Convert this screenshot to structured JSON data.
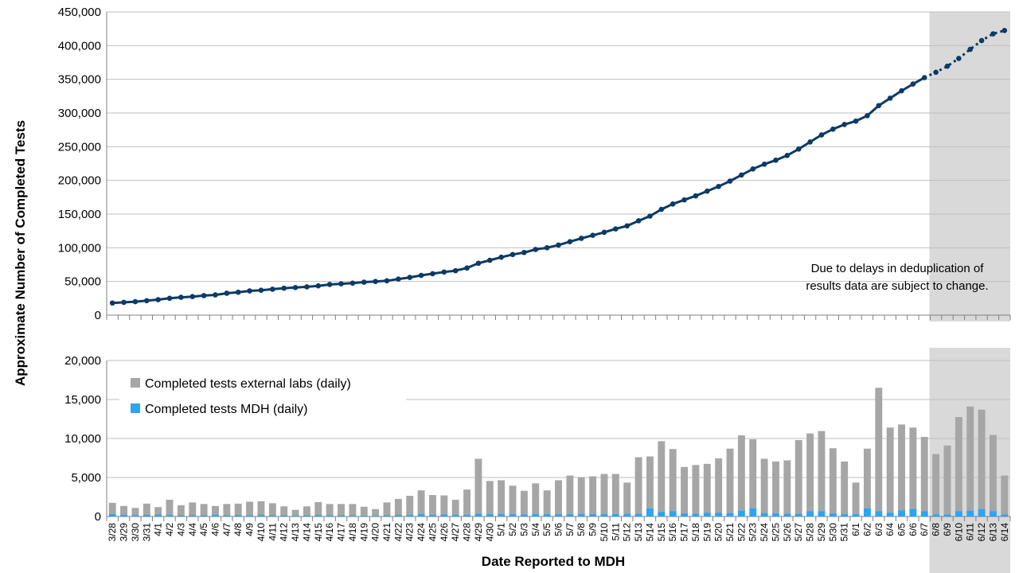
{
  "chart_data": [
    {
      "type": "line",
      "ylabel": "Approximate Number of Completed Tests",
      "ylim": [
        0,
        450000
      ],
      "yticks": [
        "0",
        "50,000",
        "100,000",
        "150,000",
        "200,000",
        "250,000",
        "300,000",
        "350,000",
        "400,000",
        "450,000"
      ],
      "grid": true,
      "annotation": [
        "Due to delays in deduplication of",
        "results data are subject to change."
      ],
      "shaded_from": "6/8",
      "dotted_from": "6/7",
      "line_color": "#0d3a66",
      "x": [
        "3/28",
        "3/29",
        "3/30",
        "3/31",
        "4/1",
        "4/2",
        "4/3",
        "4/4",
        "4/5",
        "4/6",
        "4/7",
        "4/8",
        "4/9",
        "4/10",
        "4/11",
        "4/12",
        "4/13",
        "4/14",
        "4/15",
        "4/16",
        "4/17",
        "4/18",
        "4/19",
        "4/20",
        "4/21",
        "4/22",
        "4/23",
        "4/24",
        "4/25",
        "4/26",
        "4/27",
        "4/28",
        "4/29",
        "4/30",
        "5/1",
        "5/2",
        "5/3",
        "5/4",
        "5/5",
        "5/6",
        "5/7",
        "5/8",
        "5/9",
        "5/10",
        "5/11",
        "5/12",
        "5/13",
        "5/14",
        "5/15",
        "5/16",
        "5/17",
        "5/18",
        "5/19",
        "5/20",
        "5/21",
        "5/22",
        "5/23",
        "5/24",
        "5/25",
        "5/26",
        "5/27",
        "5/28",
        "5/29",
        "5/30",
        "5/31",
        "6/1",
        "6/2",
        "6/3",
        "6/4",
        "6/5",
        "6/6",
        "6/7",
        "6/8",
        "6/9",
        "6/10",
        "6/11",
        "6/12",
        "6/13",
        "6/14"
      ],
      "values": [
        18000,
        19000,
        20000,
        21500,
        23000,
        25000,
        26500,
        27500,
        29000,
        30000,
        32500,
        34000,
        36000,
        37000,
        38500,
        40000,
        41000,
        42000,
        43500,
        45500,
        46500,
        47500,
        49000,
        50000,
        51000,
        53500,
        56000,
        59000,
        61500,
        64000,
        66000,
        70000,
        77000,
        81500,
        86000,
        90000,
        93000,
        97500,
        100000,
        104000,
        109000,
        114000,
        118500,
        123000,
        128000,
        132500,
        140000,
        147000,
        157000,
        165000,
        171000,
        177000,
        184000,
        191000,
        199000,
        208000,
        217000,
        224000,
        230000,
        237000,
        246500,
        257000,
        267500,
        276000,
        283000,
        288000,
        296000,
        311000,
        322000,
        333000,
        343000,
        352500,
        360500,
        369500,
        381000,
        394500,
        407500,
        417500,
        422500
      ]
    },
    {
      "type": "bar",
      "xlabel": "Date Reported to MDH",
      "ylim": [
        0,
        20000
      ],
      "yticks": [
        "0",
        "5,000",
        "10,000",
        "15,000",
        "20,000"
      ],
      "grid": true,
      "legend_position": "top-left",
      "shaded_from": "6/8",
      "categories": [
        "3/28",
        "3/29",
        "3/30",
        "3/31",
        "4/1",
        "4/2",
        "4/3",
        "4/4",
        "4/5",
        "4/6",
        "4/7",
        "4/8",
        "4/9",
        "4/10",
        "4/11",
        "4/12",
        "4/13",
        "4/14",
        "4/15",
        "4/16",
        "4/17",
        "4/18",
        "4/19",
        "4/20",
        "4/21",
        "4/22",
        "4/23",
        "4/24",
        "4/25",
        "4/26",
        "4/27",
        "4/28",
        "4/29",
        "4/30",
        "5/1",
        "5/2",
        "5/3",
        "5/4",
        "5/5",
        "5/6",
        "5/7",
        "5/8",
        "5/9",
        "5/10",
        "5/11",
        "5/12",
        "5/13",
        "5/14",
        "5/15",
        "5/16",
        "5/17",
        "5/18",
        "5/19",
        "5/20",
        "5/21",
        "5/22",
        "5/23",
        "5/24",
        "5/25",
        "5/26",
        "5/27",
        "5/28",
        "5/29",
        "5/30",
        "5/31",
        "6/1",
        "6/2",
        "6/3",
        "6/4",
        "6/5",
        "6/6",
        "6/7",
        "6/8",
        "6/9",
        "6/10",
        "6/11",
        "6/12",
        "6/13",
        "6/14"
      ],
      "series": [
        {
          "name": "Completed tests external labs (daily)",
          "color": "#a6a6a6",
          "values": [
            1450,
            1150,
            950,
            1450,
            950,
            1950,
            1300,
            1650,
            1450,
            1150,
            1450,
            1450,
            1750,
            1750,
            1550,
            1150,
            750,
            1150,
            1650,
            1450,
            1450,
            1450,
            1150,
            850,
            1650,
            2050,
            2450,
            3050,
            2550,
            2450,
            1950,
            3250,
            7050,
            4250,
            4350,
            3650,
            3050,
            3950,
            3050,
            4350,
            4950,
            4750,
            4850,
            5150,
            5150,
            4000,
            7250,
            6650,
            9050,
            7950,
            5950,
            6250,
            6250,
            6950,
            8250,
            9650,
            8850,
            6950,
            6650,
            6850,
            9450,
            9950,
            10250,
            8350,
            6750,
            4050,
            7650,
            15800,
            10900,
            11000,
            10400,
            9500,
            7750,
            8850,
            12050,
            13350,
            12750,
            9750,
            5000
          ]
        },
        {
          "name": "Completed tests MDH (daily)",
          "color": "#2ea3f2",
          "values": [
            300,
            200,
            150,
            200,
            250,
            200,
            150,
            150,
            150,
            200,
            150,
            200,
            150,
            200,
            150,
            150,
            100,
            150,
            200,
            150,
            150,
            150,
            100,
            100,
            150,
            200,
            200,
            300,
            200,
            250,
            200,
            200,
            350,
            300,
            300,
            300,
            250,
            300,
            300,
            300,
            300,
            300,
            300,
            300,
            300,
            350,
            350,
            1050,
            600,
            700,
            400,
            350,
            500,
            500,
            450,
            750,
            1050,
            450,
            400,
            350,
            350,
            700,
            700,
            400,
            300,
            300,
            1050,
            700,
            500,
            800,
            1000,
            700,
            250,
            250,
            700,
            750,
            950,
            700,
            250
          ]
        }
      ]
    }
  ]
}
